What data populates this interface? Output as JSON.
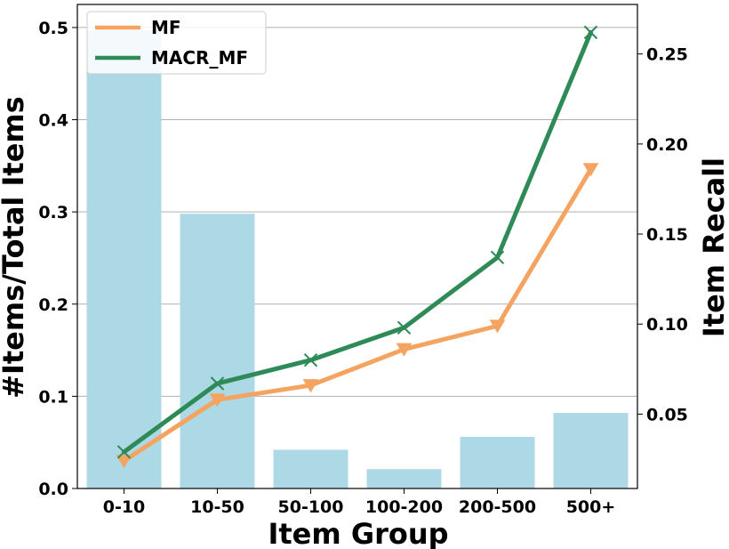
{
  "chart_data": {
    "type": "bar+line",
    "categories": [
      "0-10",
      "10-50",
      "50-100",
      "100-200",
      "200-500",
      "500+"
    ],
    "bars": {
      "values": [
        0.497,
        0.298,
        0.042,
        0.021,
        0.056,
        0.082
      ],
      "color": "#add8e6",
      "axis": "left"
    },
    "series": [
      {
        "name": "MF",
        "values": [
          0.024,
          0.058,
          0.066,
          0.086,
          0.099,
          0.186
        ],
        "color": "#f4a460",
        "marker": "triangle-down",
        "axis": "right"
      },
      {
        "name": "MACR_MF",
        "values": [
          0.029,
          0.067,
          0.08,
          0.098,
          0.137,
          0.262
        ],
        "color": "#2e8b57",
        "marker": "x",
        "axis": "right"
      }
    ],
    "xlabel": "Item Group",
    "ylabel_left": "#Items/Total Items",
    "ylabel_right": "Item Recall",
    "ylim_left": [
      0,
      0.525
    ],
    "ylim_right": [
      0.0087,
      0.2775
    ],
    "yticks_left": [
      "0.0",
      "0.1",
      "0.2",
      "0.3",
      "0.4",
      "0.5"
    ],
    "yticks_right": [
      "0.05",
      "0.10",
      "0.15",
      "0.20",
      "0.25"
    ],
    "grid": "horizontal",
    "legend_position": "top-left"
  }
}
